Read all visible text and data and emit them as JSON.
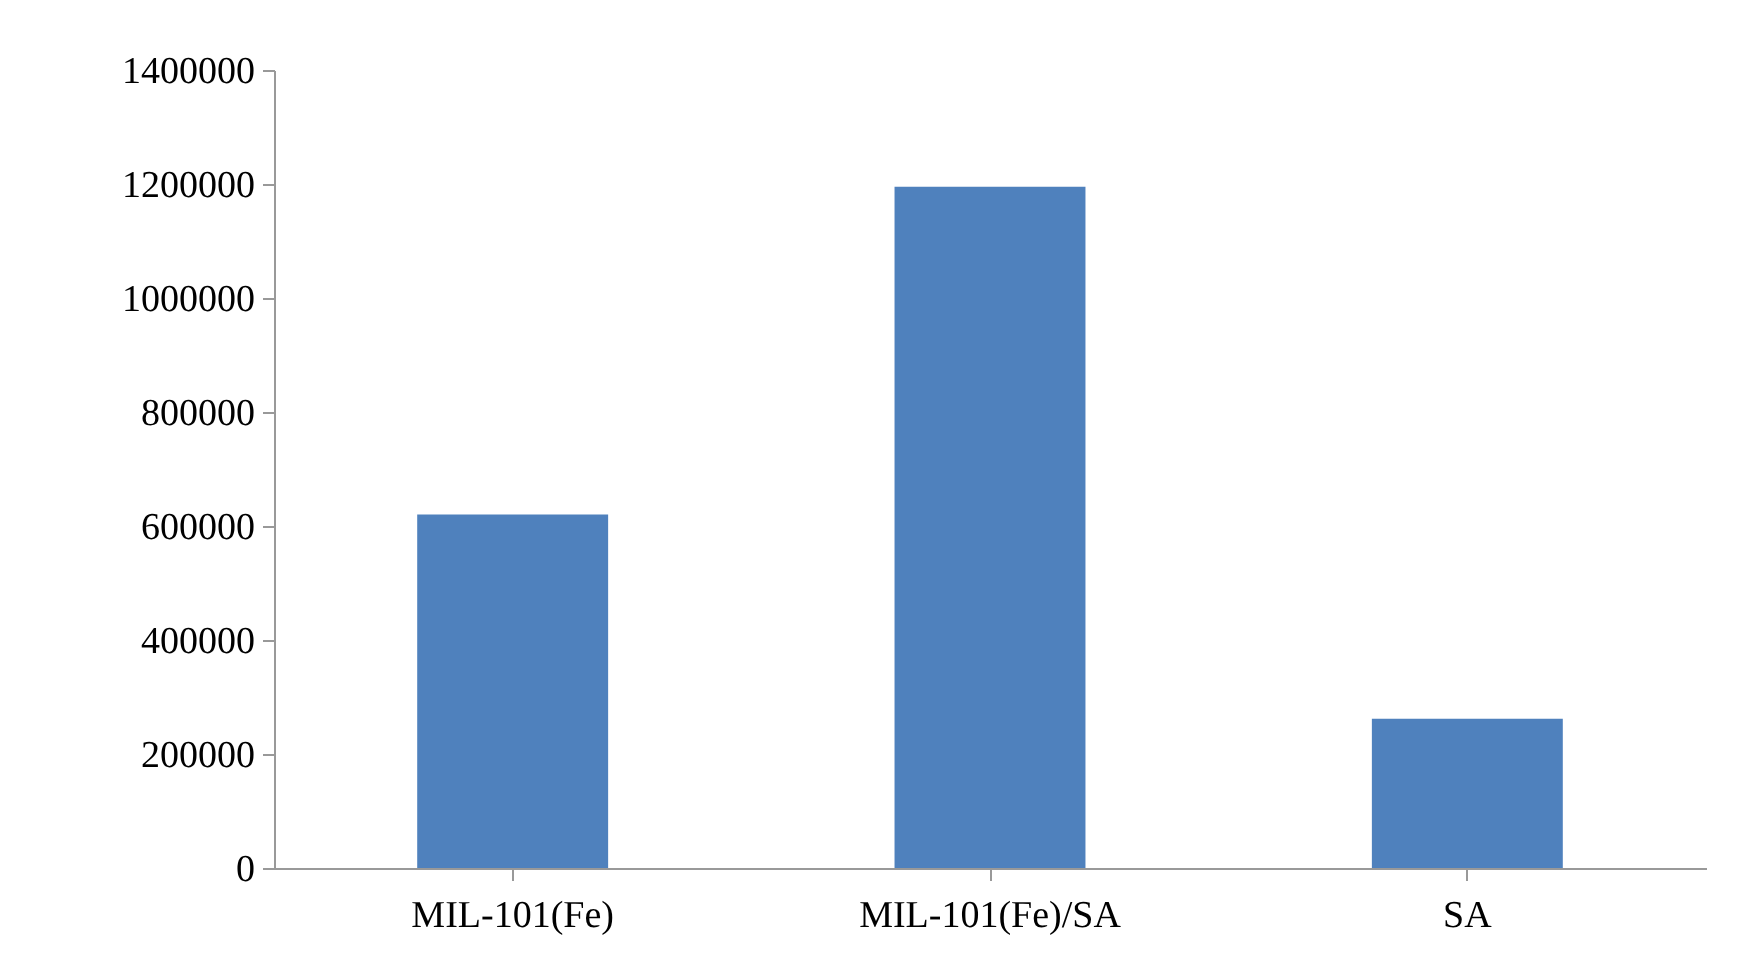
{
  "chart_data": {
    "type": "bar",
    "categories": [
      "MIL-101(Fe)",
      "MIL-101(Fe)/SA",
      "SA"
    ],
    "values": [
      620000,
      1195000,
      262000
    ],
    "color": "#4f81bd",
    "ylim": [
      0,
      1400000
    ],
    "yticks": [
      0,
      200000,
      400000,
      600000,
      800000,
      1000000,
      1200000,
      1400000
    ],
    "grid": false
  }
}
